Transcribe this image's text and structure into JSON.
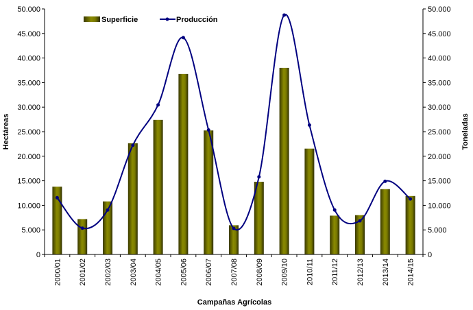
{
  "chart_data": {
    "type": "bar",
    "categories": [
      "2000/01",
      "2001/02",
      "2002/03",
      "2003/04",
      "2004/05",
      "2005/06",
      "2006/07",
      "2007/08",
      "2008/09",
      "2009/10",
      "2010/11",
      "2011/12",
      "2012/13",
      "2013/14",
      "2014/15"
    ],
    "series": [
      {
        "name": "Superficie",
        "type": "bar",
        "axis": "left",
        "color": "#7a7a00",
        "values": [
          13800,
          7200,
          10800,
          22650,
          27400,
          36750,
          25250,
          5950,
          14800,
          38000,
          21550,
          7900,
          8000,
          13300,
          11900
        ]
      },
      {
        "name": "Producción",
        "type": "line",
        "axis": "right",
        "color": "#000080",
        "values": [
          11550,
          5350,
          9050,
          22250,
          30450,
          44150,
          25350,
          5300,
          15800,
          48750,
          26350,
          9050,
          6850,
          14900,
          11300
        ]
      }
    ],
    "xlabel": "Campañas Agrícolas",
    "ylabel": "Hectáreas",
    "y2label": "Toneladas",
    "ylim": [
      0,
      50000
    ],
    "y2lim": [
      0,
      50000
    ],
    "yticks": [
      "0",
      "5.000",
      "10.000",
      "15.000",
      "20.000",
      "25.000",
      "30.000",
      "35.000",
      "40.000",
      "45.000",
      "50.000"
    ],
    "grid": false,
    "legend": "top"
  }
}
